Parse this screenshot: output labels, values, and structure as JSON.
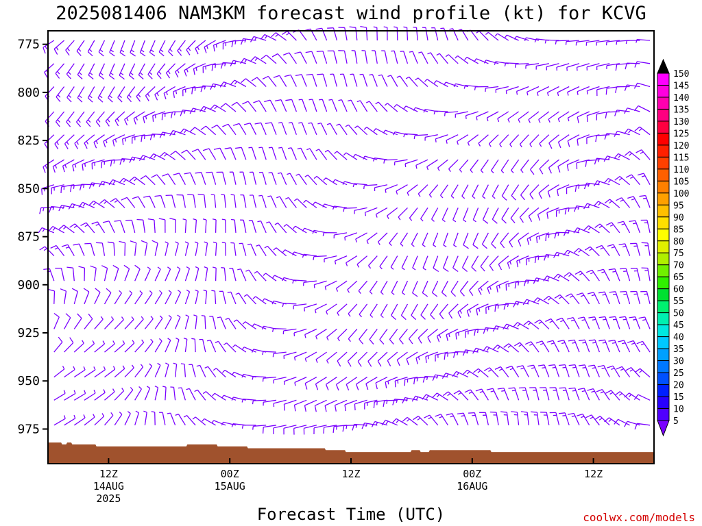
{
  "title": "2025081406 NAM3KM forecast wind profile (kt) for KCVG",
  "credit": "coolwx.com/models",
  "chart_data": {
    "type": "wind-barb-profile",
    "title": "2025081406 NAM3KM forecast wind profile (kt) for KCVG",
    "xlabel": "Forecast Time (UTC)",
    "ylabel": "",
    "x_axis": {
      "forecast_hour_range": [
        0,
        60
      ],
      "ticks": [
        {
          "hour": 6,
          "lines": [
            "12Z",
            "14AUG",
            "2025"
          ]
        },
        {
          "hour": 18,
          "lines": [
            "00Z",
            "15AUG"
          ]
        },
        {
          "hour": 30,
          "lines": [
            "12Z"
          ]
        },
        {
          "hour": 42,
          "lines": [
            "00Z",
            "16AUG"
          ]
        },
        {
          "hour": 54,
          "lines": [
            "12Z"
          ]
        }
      ]
    },
    "y_axis": {
      "units": "hPa",
      "range": [
        993,
        768
      ],
      "inverted": true,
      "ticks": [
        775,
        800,
        825,
        850,
        875,
        900,
        925,
        950,
        975
      ]
    },
    "pressure_levels": [
      773,
      785,
      797,
      810,
      822,
      835,
      848,
      860,
      873,
      885,
      898,
      910,
      923,
      935,
      948,
      960,
      973
    ],
    "wind": {
      "units": "kt",
      "colorbar": [
        5,
        10,
        15,
        20,
        25,
        30,
        35,
        40,
        45,
        50,
        55,
        60,
        65,
        70,
        75,
        80,
        85,
        90,
        95,
        100,
        105,
        110,
        115,
        120,
        125,
        130,
        135,
        140,
        145,
        150
      ],
      "colors": [
        "#7a00ff",
        "#5000ff",
        "#2800ff",
        "#0020ff",
        "#0050ff",
        "#0078ff",
        "#00a0ff",
        "#00c8ff",
        "#00e8e0",
        "#00f0b0",
        "#00f070",
        "#00e030",
        "#30f000",
        "#70f000",
        "#b0f000",
        "#e0f000",
        "#ffff00",
        "#ffe000",
        "#ffc000",
        "#ffa000",
        "#ff8000",
        "#ff6000",
        "#ff4000",
        "#ff2000",
        "#ff0000",
        "#ff0040",
        "#ff0080",
        "#ff00b0",
        "#ff00e0",
        "#ff00ff"
      ],
      "barb_color": "#7a00ff",
      "speed_range_kt": [
        5,
        20
      ]
    },
    "surface": {
      "color": "#a0522d",
      "pressure_hpa": [
        [
          0,
          982
        ],
        [
          1.3,
          982
        ],
        [
          1.4,
          983
        ],
        [
          1.8,
          983
        ],
        [
          1.9,
          982
        ],
        [
          2.3,
          982
        ],
        [
          2.4,
          983
        ],
        [
          4.7,
          983
        ],
        [
          4.8,
          984
        ],
        [
          13.7,
          984
        ],
        [
          13.8,
          983
        ],
        [
          16.7,
          983
        ],
        [
          16.8,
          984
        ],
        [
          19.7,
          984
        ],
        [
          19.8,
          985
        ],
        [
          27.4,
          985
        ],
        [
          27.5,
          986
        ],
        [
          29.4,
          986
        ],
        [
          29.5,
          987
        ],
        [
          35.9,
          987
        ],
        [
          36.0,
          986
        ],
        [
          36.8,
          986
        ],
        [
          36.9,
          987
        ],
        [
          37.7,
          987
        ],
        [
          37.8,
          986
        ],
        [
          43.8,
          986
        ],
        [
          43.9,
          987
        ],
        [
          60,
          987
        ]
      ]
    }
  }
}
